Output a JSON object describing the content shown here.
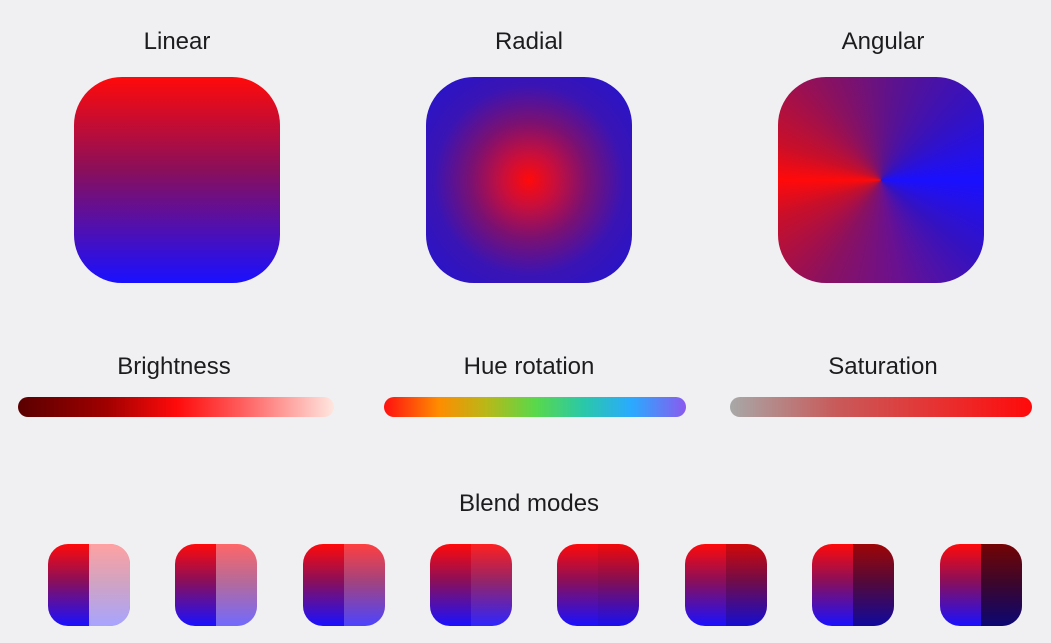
{
  "gradients": {
    "linear_label": "Linear",
    "radial_label": "Radial",
    "angular_label": "Angular"
  },
  "adjustments": {
    "brightness_label": "Brightness",
    "hue_label": "Hue rotation",
    "saturation_label": "Saturation"
  },
  "blend": {
    "title": "Blend modes",
    "tile_count": 8
  },
  "colors": {
    "background": "#f0f0f3",
    "red": "#ff0a0a",
    "blue": "#1a10ff",
    "text": "#1c1c1e"
  }
}
